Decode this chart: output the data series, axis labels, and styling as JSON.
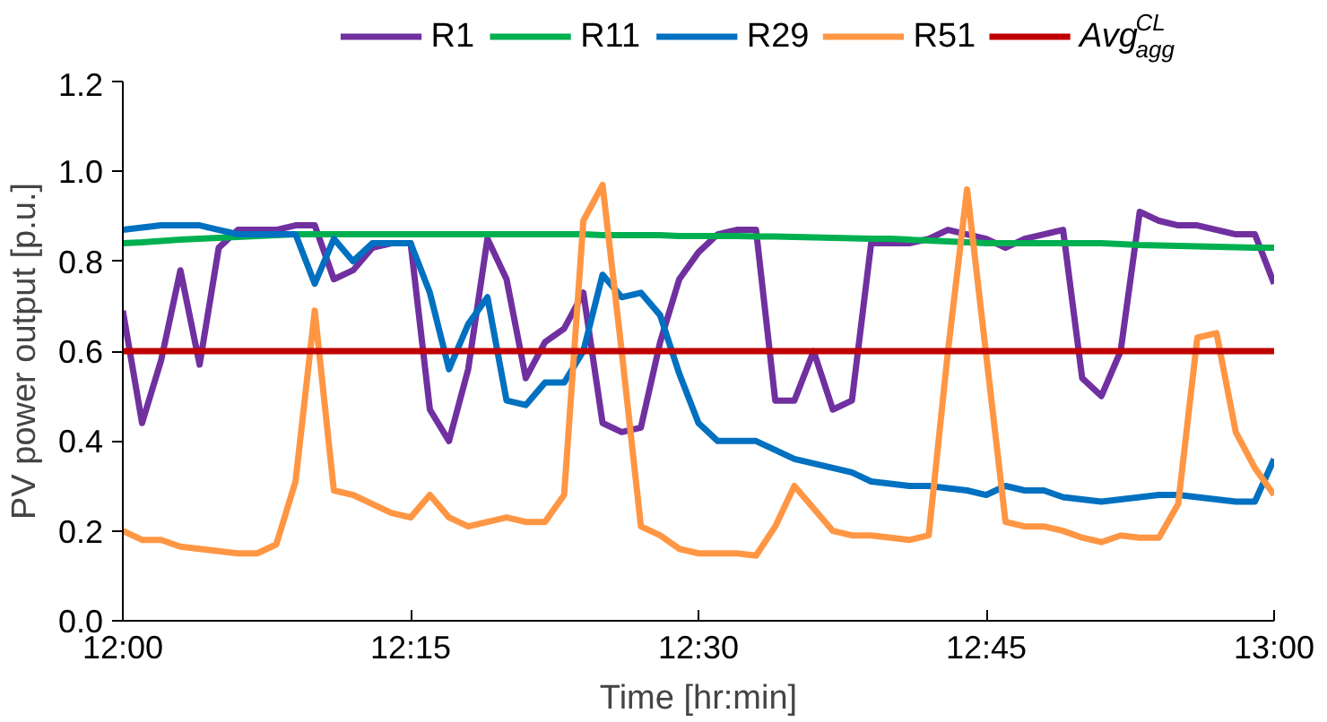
{
  "chart_data": {
    "type": "line",
    "xlabel": "Time [hr:min]",
    "ylabel": "PV power output [p.u.]",
    "x": [
      12.0,
      12.0167,
      12.0333,
      12.05,
      12.0667,
      12.0833,
      12.1,
      12.1167,
      12.1333,
      12.15,
      12.1667,
      12.1833,
      12.2,
      12.2167,
      12.2333,
      12.25,
      12.2667,
      12.2833,
      12.3,
      12.3167,
      12.3333,
      12.35,
      12.3667,
      12.3833,
      12.4,
      12.4167,
      12.4333,
      12.45,
      12.4667,
      12.4833,
      12.5,
      12.5167,
      12.5333,
      12.55,
      12.5667,
      12.5833,
      12.6,
      12.6167,
      12.6333,
      12.65,
      12.6667,
      12.6833,
      12.7,
      12.7167,
      12.7333,
      12.75,
      12.7667,
      12.7833,
      12.8,
      12.8167,
      12.8333,
      12.85,
      12.8667,
      12.8833,
      12.9,
      12.9167,
      12.9333,
      12.95,
      12.9667,
      12.9833,
      13.0
    ],
    "series": [
      {
        "name": "R1",
        "color": "#7030a0",
        "values": [
          0.69,
          0.44,
          0.58,
          0.78,
          0.57,
          0.83,
          0.87,
          0.87,
          0.87,
          0.88,
          0.88,
          0.76,
          0.78,
          0.83,
          0.84,
          0.84,
          0.47,
          0.4,
          0.56,
          0.85,
          0.76,
          0.54,
          0.62,
          0.65,
          0.73,
          0.44,
          0.42,
          0.43,
          0.62,
          0.76,
          0.82,
          0.86,
          0.87,
          0.87,
          0.49,
          0.49,
          0.6,
          0.47,
          0.49,
          0.84,
          0.84,
          0.84,
          0.85,
          0.87,
          0.86,
          0.85,
          0.83,
          0.85,
          0.86,
          0.87,
          0.54,
          0.5,
          0.6,
          0.91,
          0.89,
          0.88,
          0.88,
          0.87,
          0.86,
          0.86,
          0.75
        ]
      },
      {
        "name": "R11",
        "color": "#00b050",
        "values": [
          0.84,
          0.842,
          0.845,
          0.848,
          0.85,
          0.852,
          0.854,
          0.856,
          0.858,
          0.86,
          0.86,
          0.86,
          0.86,
          0.86,
          0.86,
          0.86,
          0.86,
          0.86,
          0.86,
          0.86,
          0.86,
          0.86,
          0.86,
          0.86,
          0.86,
          0.858,
          0.858,
          0.858,
          0.858,
          0.856,
          0.856,
          0.856,
          0.856,
          0.855,
          0.855,
          0.854,
          0.853,
          0.852,
          0.851,
          0.85,
          0.85,
          0.848,
          0.846,
          0.844,
          0.842,
          0.84,
          0.84,
          0.84,
          0.84,
          0.84,
          0.84,
          0.84,
          0.838,
          0.836,
          0.835,
          0.834,
          0.833,
          0.832,
          0.831,
          0.83,
          0.83
        ]
      },
      {
        "name": "R29",
        "color": "#0070c0",
        "values": [
          0.87,
          0.875,
          0.88,
          0.88,
          0.88,
          0.87,
          0.86,
          0.86,
          0.86,
          0.86,
          0.75,
          0.85,
          0.8,
          0.84,
          0.84,
          0.84,
          0.73,
          0.56,
          0.66,
          0.72,
          0.49,
          0.48,
          0.53,
          0.53,
          0.6,
          0.77,
          0.72,
          0.73,
          0.68,
          0.55,
          0.44,
          0.4,
          0.4,
          0.4,
          0.38,
          0.36,
          0.35,
          0.34,
          0.33,
          0.31,
          0.305,
          0.3,
          0.3,
          0.295,
          0.29,
          0.28,
          0.3,
          0.29,
          0.29,
          0.275,
          0.27,
          0.265,
          0.27,
          0.275,
          0.28,
          0.28,
          0.275,
          0.27,
          0.265,
          0.265,
          0.36
        ]
      },
      {
        "name": "R51",
        "color": "#ff9644",
        "values": [
          0.2,
          0.18,
          0.18,
          0.165,
          0.16,
          0.155,
          0.15,
          0.15,
          0.17,
          0.31,
          0.69,
          0.29,
          0.28,
          0.26,
          0.24,
          0.23,
          0.28,
          0.23,
          0.21,
          0.22,
          0.23,
          0.22,
          0.22,
          0.28,
          0.89,
          0.97,
          0.6,
          0.21,
          0.19,
          0.16,
          0.15,
          0.15,
          0.15,
          0.145,
          0.21,
          0.3,
          0.25,
          0.2,
          0.19,
          0.19,
          0.185,
          0.18,
          0.19,
          0.6,
          0.96,
          0.59,
          0.22,
          0.21,
          0.21,
          0.2,
          0.185,
          0.175,
          0.19,
          0.185,
          0.185,
          0.26,
          0.63,
          0.64,
          0.42,
          0.34,
          0.28
        ]
      },
      {
        "name": "Avg$^{CL}$$_{agg}$",
        "color": "#c00000",
        "x": [
          12.0,
          13.0
        ],
        "values": [
          0.6,
          0.6
        ]
      }
    ],
    "xlim": [
      12.0,
      13.0
    ],
    "xticks": [
      {
        "value": 12.0,
        "label": "12:00"
      },
      {
        "value": 12.25,
        "label": "12:15"
      },
      {
        "value": 12.5,
        "label": "12:30"
      },
      {
        "value": 12.75,
        "label": "12:45"
      },
      {
        "value": 13.0,
        "label": "13:00"
      }
    ],
    "ylim": [
      0,
      1.2
    ],
    "yticks": [
      {
        "value": 0,
        "label": "0.0"
      },
      {
        "value": 0.2,
        "label": "0.2"
      },
      {
        "value": 0.4,
        "label": "0.4"
      },
      {
        "value": 0.6,
        "label": "0.6"
      },
      {
        "value": 0.8,
        "label": "0.8"
      },
      {
        "value": 1.0,
        "label": "1.0"
      },
      {
        "value": 1.2,
        "label": "1.2"
      }
    ],
    "grid": false,
    "legend": "top",
    "marker": "none",
    "line_style": "solid"
  }
}
